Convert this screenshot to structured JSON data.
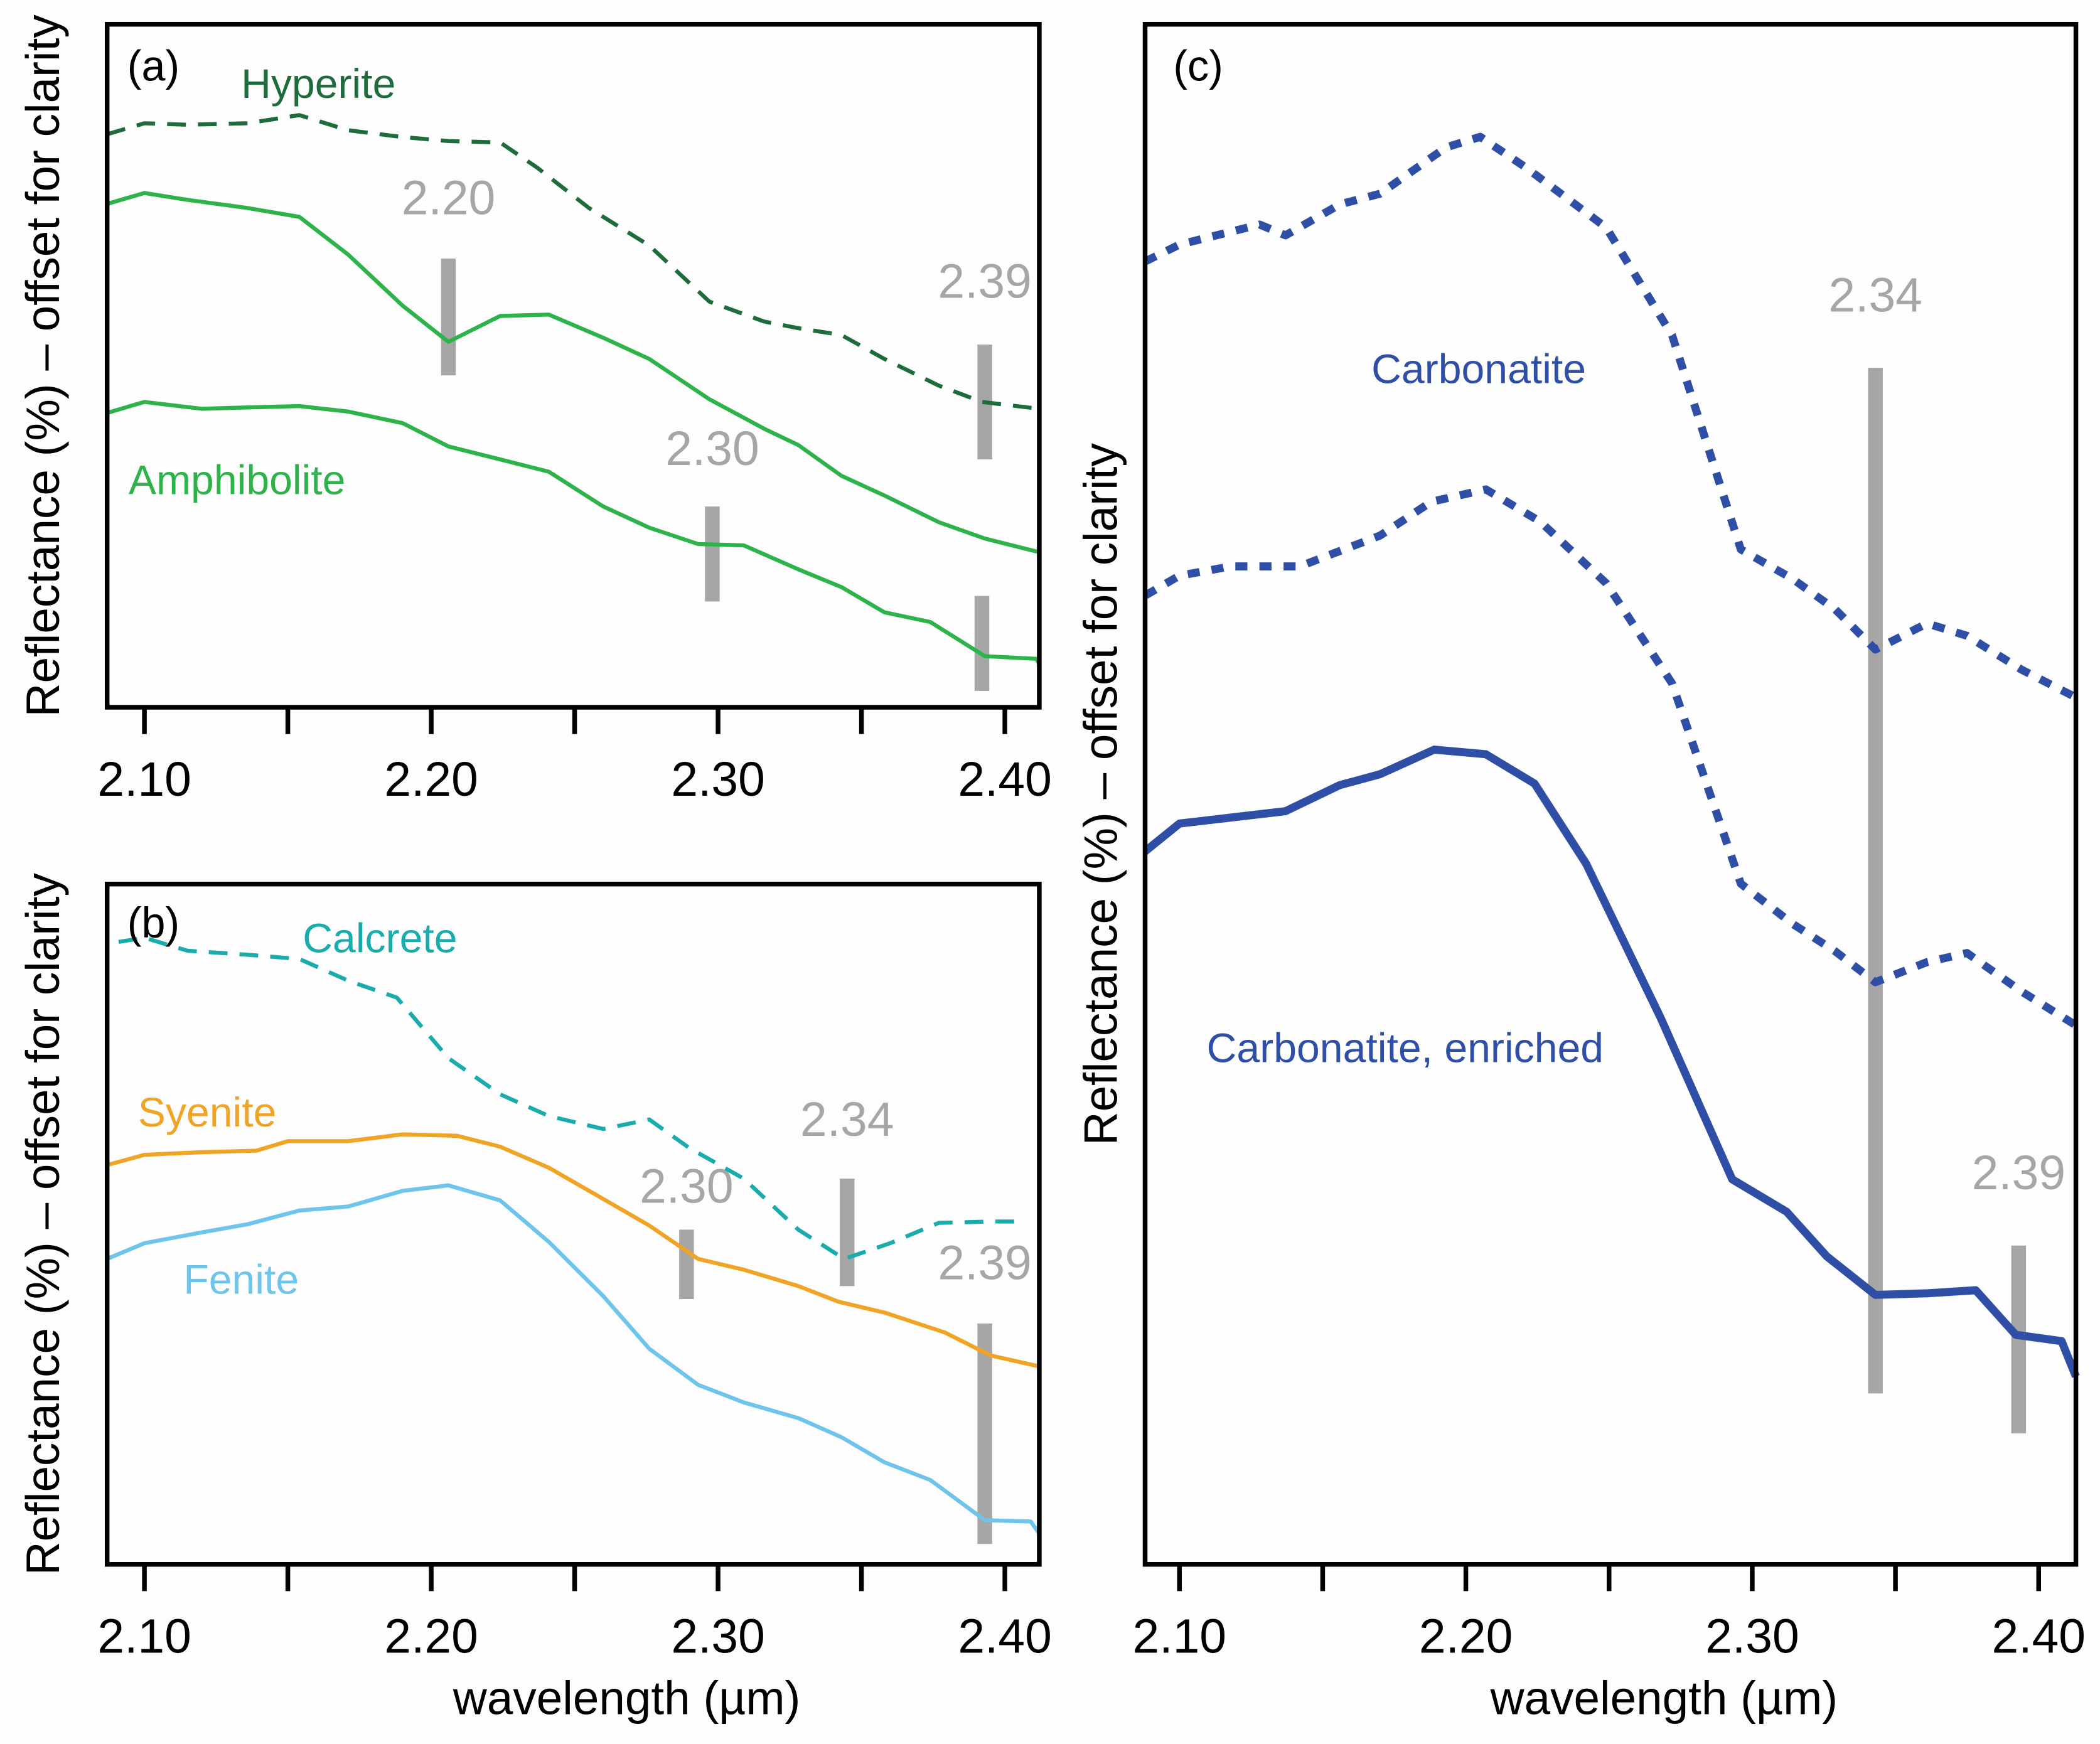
{
  "chart_data": [
    {
      "type": "line",
      "panel_label": "(a)",
      "ylabel": "Reflectance (%) – offset for clarity",
      "xlabel": "",
      "xlim": [
        2.087,
        2.412
      ],
      "ylim": [
        0,
        100
      ],
      "xticks": [
        2.1,
        2.15,
        2.2,
        2.25,
        2.3,
        2.35,
        2.4
      ],
      "xtick_labels": [
        "2.10",
        "",
        "2.20",
        "",
        "2.30",
        "",
        "2.40"
      ],
      "series": [
        {
          "name": "Hyperite",
          "label": "Hyperite",
          "color": "#1e6b3c",
          "style": "dashed",
          "x": [
            2.087,
            2.1,
            2.115,
            2.136,
            2.154,
            2.171,
            2.19,
            2.206,
            2.224,
            2.237,
            2.255,
            2.276,
            2.297,
            2.316,
            2.328,
            2.343,
            2.358,
            2.377,
            2.392,
            2.412
          ],
          "y": [
            83.9,
            85.5,
            85.3,
            85.5,
            86.7,
            84.5,
            83.5,
            82.9,
            82.7,
            79.0,
            73.1,
            67.6,
            59.4,
            56.5,
            55.5,
            54.5,
            51.0,
            47.1,
            44.7,
            43.7
          ]
        },
        {
          "name": "Amphibolite-upper",
          "label": "",
          "color": "#2eb34a",
          "style": "solid",
          "x": [
            2.087,
            2.1,
            2.115,
            2.136,
            2.154,
            2.171,
            2.19,
            2.206,
            2.224,
            2.241,
            2.26,
            2.276,
            2.297,
            2.316,
            2.328,
            2.343,
            2.358,
            2.377,
            2.393,
            2.412
          ],
          "y": [
            73.7,
            75.3,
            74.3,
            73.1,
            71.8,
            66.3,
            58.8,
            53.5,
            57.3,
            57.5,
            54.1,
            51.0,
            45.1,
            40.8,
            38.4,
            33.9,
            31.0,
            27.1,
            24.7,
            22.7
          ]
        },
        {
          "name": "Amphibolite",
          "label": "Amphibolite",
          "color": "#2eb34a",
          "style": "solid",
          "x": [
            2.087,
            2.1,
            2.12,
            2.136,
            2.154,
            2.171,
            2.19,
            2.206,
            2.224,
            2.241,
            2.26,
            2.276,
            2.293,
            2.309,
            2.328,
            2.343,
            2.358,
            2.374,
            2.393,
            2.411,
            2.412
          ],
          "y": [
            43.1,
            44.7,
            43.7,
            43.9,
            44.1,
            43.3,
            41.6,
            38.2,
            36.3,
            34.5,
            29.4,
            26.3,
            23.9,
            23.7,
            20.2,
            17.6,
            13.9,
            12.5,
            7.5,
            7.1,
            6.3
          ]
        }
      ],
      "markers": [
        {
          "label": "2.20",
          "x": 2.206,
          "y": [
            48.6,
            65.7
          ]
        },
        {
          "label": "2.30",
          "x": 2.298,
          "y": [
            15.5,
            29.4
          ]
        },
        {
          "label": "2.39",
          "x": 2.393,
          "y": [
            36.3,
            53.1
          ]
        },
        {
          "label": "",
          "x": 2.392,
          "y": [
            2.4,
            16.3
          ]
        }
      ]
    },
    {
      "type": "line",
      "panel_label": "(b)",
      "ylabel": "Reflectance (%) – offset for clarity",
      "xlabel": "wavelength (µm)",
      "xlim": [
        2.087,
        2.412
      ],
      "ylim": [
        0,
        100
      ],
      "xticks": [
        2.1,
        2.15,
        2.2,
        2.25,
        2.3,
        2.35,
        2.4
      ],
      "xtick_labels": [
        "2.10",
        "",
        "2.20",
        "",
        "2.30",
        "",
        "2.40"
      ],
      "series": [
        {
          "name": "Calcrete",
          "label": "Calcrete",
          "color": "#1aacac",
          "style": "dashed",
          "x": [
            2.091,
            2.1,
            2.115,
            2.136,
            2.154,
            2.171,
            2.188,
            2.206,
            2.224,
            2.241,
            2.26,
            2.276,
            2.29,
            2.309,
            2.328,
            2.344,
            2.36,
            2.377,
            2.395,
            2.407
          ],
          "y": [
            91.5,
            92.1,
            90.2,
            89.6,
            89.0,
            85.8,
            83.3,
            74.4,
            69.1,
            65.9,
            64.0,
            65.4,
            61.2,
            56.7,
            49.2,
            44.9,
            47.2,
            50.2,
            50.4,
            50.4
          ]
        },
        {
          "name": "Syenite",
          "label": "Syenite",
          "color": "#f0a425",
          "style": "solid",
          "x": [
            2.087,
            2.1,
            2.12,
            2.139,
            2.15,
            2.171,
            2.19,
            2.209,
            2.224,
            2.241,
            2.26,
            2.276,
            2.293,
            2.309,
            2.328,
            2.342,
            2.358,
            2.379,
            2.395,
            2.412
          ],
          "y": [
            58.7,
            60.2,
            60.6,
            60.8,
            62.2,
            62.2,
            63.2,
            63.0,
            61.4,
            58.3,
            53.7,
            49.8,
            44.9,
            43.3,
            40.9,
            38.6,
            37.0,
            34.1,
            30.7,
            29.1
          ]
        },
        {
          "name": "Fenite",
          "label": "Fenite",
          "color": "#6ec4ea",
          "style": "solid",
          "x": [
            2.087,
            2.1,
            2.12,
            2.136,
            2.154,
            2.171,
            2.19,
            2.206,
            2.224,
            2.241,
            2.26,
            2.276,
            2.293,
            2.309,
            2.328,
            2.343,
            2.358,
            2.374,
            2.393,
            2.409,
            2.412
          ],
          "y": [
            44.9,
            47.2,
            48.8,
            50.0,
            52.0,
            52.6,
            54.9,
            55.7,
            53.5,
            47.4,
            39.4,
            31.7,
            26.4,
            23.8,
            21.5,
            18.7,
            15.0,
            12.4,
            6.5,
            6.3,
            4.5
          ]
        }
      ],
      "markers": [
        {
          "label": "2.30",
          "x": 2.289,
          "y": [
            39.0,
            49.2
          ]
        },
        {
          "label": "2.34",
          "x": 2.345,
          "y": [
            40.9,
            56.7
          ]
        },
        {
          "label": "2.39",
          "x": 2.393,
          "y": [
            3.0,
            35.4
          ]
        }
      ]
    },
    {
      "type": "line",
      "panel_label": "(c)",
      "ylabel": "Reflectance (%) – offset for clarity",
      "xlabel": "wavelength (µm)",
      "xlim": [
        2.088,
        2.413
      ],
      "ylim": [
        0,
        100
      ],
      "xticks": [
        2.1,
        2.15,
        2.2,
        2.25,
        2.3,
        2.35,
        2.4
      ],
      "xtick_labels": [
        "2.10",
        "",
        "2.20",
        "",
        "2.30",
        "",
        "2.40"
      ],
      "series": [
        {
          "name": "Carbonatite-upper",
          "label": "",
          "color": "#2e4fa5",
          "style": "dotted",
          "x": [
            2.088,
            2.1,
            2.128,
            2.137,
            2.156,
            2.17,
            2.193,
            2.205,
            2.221,
            2.249,
            2.272,
            2.296,
            2.314,
            2.329,
            2.343,
            2.361,
            2.375,
            2.394,
            2.413
          ],
          "y": [
            84.6,
            85.7,
            87.0,
            86.3,
            88.3,
            89.0,
            92.0,
            92.7,
            90.7,
            86.8,
            79.8,
            65.9,
            64.0,
            62.0,
            59.4,
            61.1,
            60.3,
            58.1,
            56.3
          ]
        },
        {
          "name": "Carbonatite",
          "label": "Carbonatite",
          "color": "#2e4fa5",
          "style": "dotted",
          "x": [
            2.088,
            2.1,
            2.118,
            2.142,
            2.17,
            2.188,
            2.207,
            2.226,
            2.249,
            2.272,
            2.296,
            2.314,
            2.329,
            2.343,
            2.361,
            2.375,
            2.394,
            2.413
          ],
          "y": [
            62.9,
            64.2,
            64.8,
            64.8,
            66.8,
            69.0,
            69.8,
            67.7,
            63.7,
            57.2,
            44.2,
            41.6,
            39.8,
            37.8,
            39.1,
            39.7,
            37.2,
            35.0
          ]
        },
        {
          "name": "Carbonatite, enriched",
          "label": "Carbonatite, enriched",
          "color": "#2e4fa5",
          "style": "solid-thick",
          "x": [
            2.088,
            2.1,
            2.137,
            2.156,
            2.17,
            2.189,
            2.207,
            2.224,
            2.242,
            2.268,
            2.293,
            2.312,
            2.326,
            2.343,
            2.361,
            2.378,
            2.392,
            2.408,
            2.413
          ],
          "y": [
            46.3,
            48.1,
            48.9,
            50.6,
            51.3,
            52.9,
            52.6,
            50.7,
            45.5,
            35.5,
            25.0,
            22.9,
            20.0,
            17.5,
            17.6,
            17.8,
            14.9,
            14.5,
            12.2
          ]
        }
      ],
      "markers": [
        {
          "label": "2.34",
          "x": 2.343,
          "y": [
            11.1,
            77.7
          ]
        },
        {
          "label": "2.39",
          "x": 2.393,
          "y": [
            8.5,
            20.7
          ]
        }
      ]
    }
  ],
  "colors": {
    "marker": "#a6a6a6",
    "axis": "#000000",
    "marker_label": "#a6a6a6"
  }
}
